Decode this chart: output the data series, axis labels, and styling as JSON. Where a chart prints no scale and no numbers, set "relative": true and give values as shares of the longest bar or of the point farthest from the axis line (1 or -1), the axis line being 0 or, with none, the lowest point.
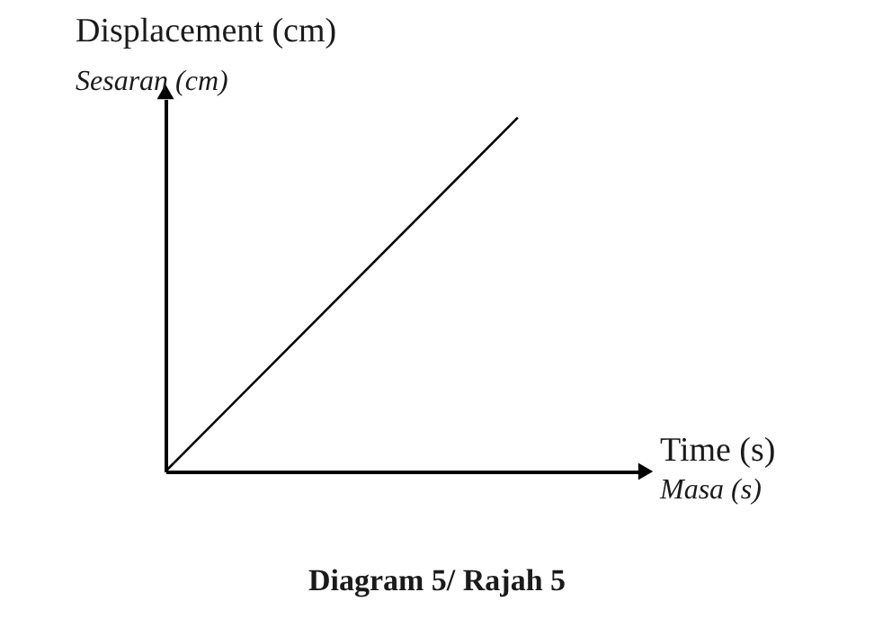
{
  "chart_data": {
    "type": "line",
    "relative": true,
    "categories": [
      null,
      null
    ],
    "values": [
      0,
      1
    ],
    "xlabel": "Time (s)",
    "ylabel": "Displacement (cm)",
    "title": "Diagram 5/ Rajah 5",
    "annotations": [
      "Sesaran (cm)",
      "Masa (s)"
    ],
    "color": "#000000"
  }
}
